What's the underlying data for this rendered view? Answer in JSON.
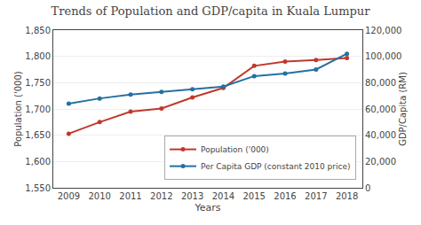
{
  "chart_data": {
    "type": "line",
    "title": "Trends of Population and GDP/capita in Kuala Lumpur",
    "xlabel": "Years",
    "ylabel": "Population ('000)",
    "y2label": "GDP/Capita (RM)",
    "x": [
      2009,
      2010,
      2011,
      2012,
      2013,
      2014,
      2015,
      2016,
      2017,
      2018
    ],
    "xlim": [
      2008.5,
      2018.5
    ],
    "xticks": [
      2009,
      2010,
      2011,
      2012,
      2013,
      2014,
      2015,
      2016,
      2017,
      2018
    ],
    "ylim": [
      1550,
      1850
    ],
    "yticks": [
      {
        "value": 1550,
        "label": "1,550"
      },
      {
        "value": 1600,
        "label": "1,600"
      },
      {
        "value": 1650,
        "label": "1,650"
      },
      {
        "value": 1700,
        "label": "1,700"
      },
      {
        "value": 1750,
        "label": "1,750"
      },
      {
        "value": 1800,
        "label": "1,800"
      },
      {
        "value": 1850,
        "label": "1,850"
      }
    ],
    "y2lim": [
      0,
      120000
    ],
    "y2ticks": [
      0,
      {
        "value": 20000,
        "label": "20,000"
      },
      {
        "value": 40000,
        "label": "40,000"
      },
      {
        "value": 60000,
        "label": "60,000"
      },
      {
        "value": 80000,
        "label": "80,000"
      },
      {
        "value": 100000,
        "label": "100,000"
      },
      {
        "value": 120000,
        "label": "120,000"
      }
    ],
    "series": [
      {
        "name": "Population ('000)",
        "color": "#c0392b",
        "marker": "circle",
        "line_style": "solid",
        "values": [
          1653,
          1675,
          1695,
          1701,
          1722,
          1740,
          1782,
          1790,
          1793,
          1797
        ]
      },
      {
        "name": "Per Capita GDP (constant 2010 price)",
        "color": "#2471a3",
        "marker": "circle",
        "line_style": "solid",
        "axis": "y2",
        "values": [
          64000,
          68000,
          71000,
          73000,
          75000,
          77000,
          85000,
          87000,
          90000,
          102000
        ]
      }
    ],
    "grid": true,
    "legend": "lower right"
  }
}
